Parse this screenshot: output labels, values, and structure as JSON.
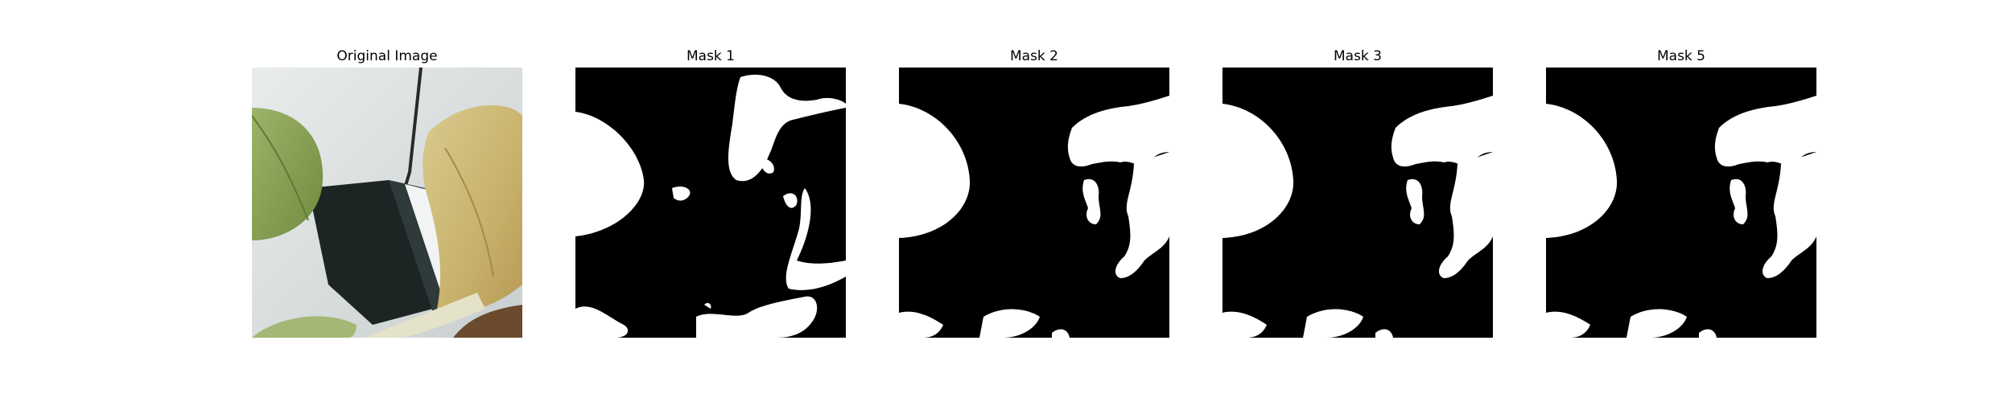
{
  "figure": {
    "panels": [
      {
        "title": "Original Image",
        "kind": "photo"
      },
      {
        "title": "Mask 1",
        "kind": "mask"
      },
      {
        "title": "Mask 2",
        "kind": "mask"
      },
      {
        "title": "Mask 3",
        "kind": "mask"
      },
      {
        "title": "Mask 5",
        "kind": "mask"
      }
    ]
  },
  "colors": {
    "mask_background": "#000000",
    "mask_foreground": "#ffffff",
    "leaf_green": "#8fa55a",
    "dry_leaf": "#cdbb7a",
    "pot_white": "#dfe3e4",
    "pot_dark": "#1d2524",
    "soil_brown": "#6b4a2e"
  }
}
